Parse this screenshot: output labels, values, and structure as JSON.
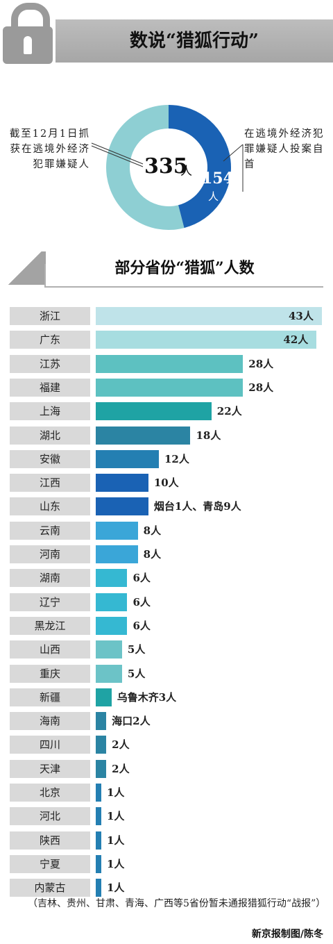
{
  "header": {
    "title": "数说“猎狐行动”"
  },
  "donut": {
    "total": "335",
    "total_unit": "人",
    "part": "154",
    "part_unit": "人",
    "part_fraction": 0.4597,
    "note_left": "截至12月1日抓获在逃境外经济犯罪嫌疑人",
    "note_right": "在逃境外经济犯罪嫌疑人投案自首",
    "colors": {
      "part": "#1a62b4",
      "rest": "#8ecfd3"
    }
  },
  "section": {
    "title": "部分省份“猎狐”人数"
  },
  "chart_data": {
    "type": "bar",
    "orientation": "horizontal",
    "categories": [
      "浙江",
      "广东",
      "江苏",
      "福建",
      "上海",
      "湖北",
      "安徽",
      "江西",
      "山东",
      "云南",
      "河南",
      "湖南",
      "辽宁",
      "黑龙江",
      "山西",
      "重庆",
      "新疆",
      "海南",
      "四川",
      "天津",
      "北京",
      "河北",
      "陕西",
      "宁夏",
      "内蒙古"
    ],
    "values": [
      43,
      42,
      28,
      28,
      22,
      18,
      12,
      10,
      10,
      8,
      8,
      6,
      6,
      6,
      5,
      5,
      3,
      2,
      2,
      2,
      1,
      1,
      1,
      1,
      1
    ],
    "labels": [
      "43人",
      "42人",
      "28人",
      "28人",
      "22人",
      "18人",
      "12人",
      "10人",
      "烟台1人、青岛9人",
      "8人",
      "8人",
      "6人",
      "6人",
      "6人",
      "5人",
      "5人",
      "乌鲁木齐3人",
      "海口2人",
      "2人",
      "2人",
      "1人",
      "1人",
      "1人",
      "1人",
      "1人"
    ],
    "colors": [
      "#bfe3e9",
      "#a7dde0",
      "#5dc1c1",
      "#5dc1c1",
      "#1fa3a4",
      "#2b84a3",
      "#247fb2",
      "#1a62b4",
      "#1a62b4",
      "#3aa6d8",
      "#3aa6d8",
      "#35b8d2",
      "#35b8d2",
      "#35b8d2",
      "#6cc3c7",
      "#6cc3c7",
      "#1fa3a4",
      "#2b84a3",
      "#2b84a3",
      "#2b84a3",
      "#247fb2",
      "#247fb2",
      "#247fb2",
      "#247fb2",
      "#247fb2"
    ],
    "xlim": [
      0,
      43
    ]
  },
  "footnote": "（吉林、贵州、甘肃、青海、广西等5省份暂未通报猎狐行动“战报”）",
  "credit": "新京报制图/陈冬"
}
